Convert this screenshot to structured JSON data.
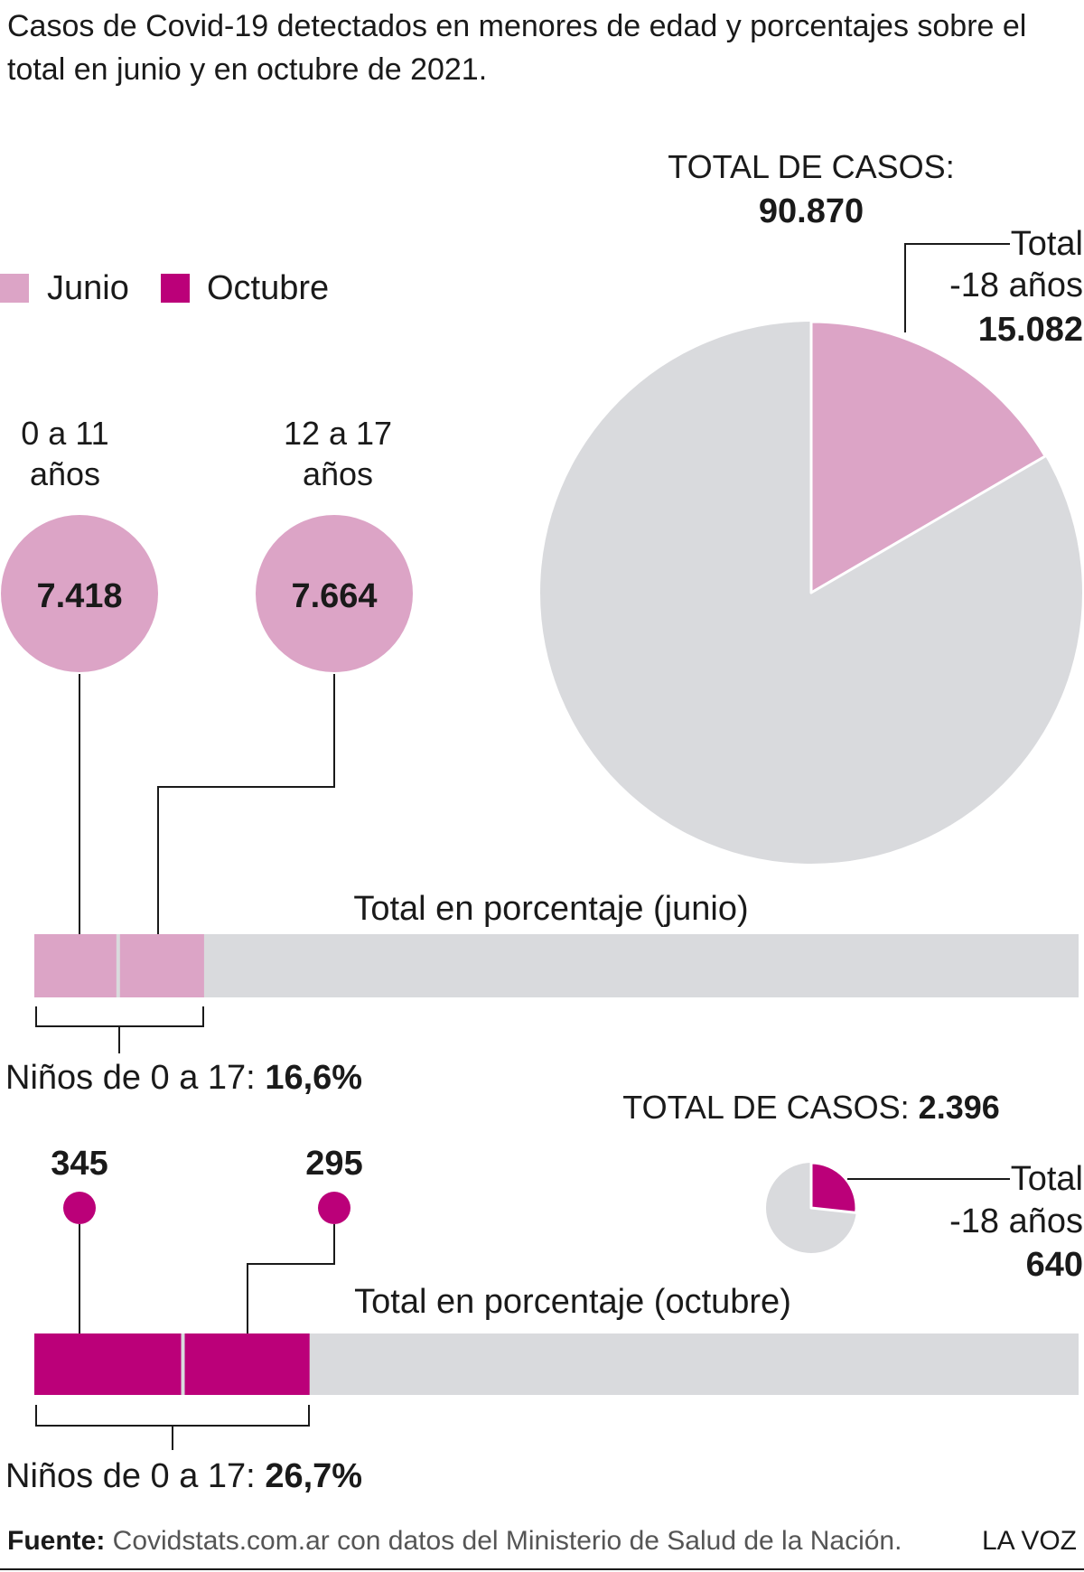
{
  "title_line1": "Casos de Covid-19 detectados en menores de edad y porcentajes sobre el",
  "title_line2": "total en junio y en octubre de 2021.",
  "legend": [
    {
      "label": "Junio",
      "color": "#dca4c6"
    },
    {
      "label": "Octubre",
      "color": "#bb0079"
    }
  ],
  "colors": {
    "junio": "#dca4c6",
    "octubre": "#bb0079",
    "rest": "#d9dadd",
    "line": "#1a1a1a"
  },
  "chart_data": [
    {
      "type": "pie",
      "period": "junio",
      "total_label": "TOTAL DE CASOS:",
      "total": 90870,
      "total_text": "90.870",
      "slices": [
        {
          "label_line1": "Total",
          "label_line2": "-18 años",
          "value": 15082,
          "value_text": "15.082"
        },
        {
          "value": 75788
        }
      ]
    },
    {
      "type": "bar",
      "period": "junio",
      "title": "Total en porcentaje (junio)",
      "groups": [
        {
          "label_line1": "0 a 11",
          "label_line2": "años",
          "value": 7418,
          "value_text": "7.418",
          "percent": 8.2
        },
        {
          "label_line1": "12 a 17",
          "label_line2": "años",
          "value": 7664,
          "value_text": "7.664",
          "percent": 8.4
        }
      ],
      "bracket_label": "Niños de 0 a 17:",
      "bracket_value": "16,6%",
      "percent_total": 16.6
    },
    {
      "type": "pie",
      "period": "octubre",
      "total_label": "TOTAL DE CASOS:",
      "total": 2396,
      "total_text": "2.396",
      "slices": [
        {
          "label_line1": "Total",
          "label_line2": "-18 años",
          "value": 640,
          "value_text": "640"
        },
        {
          "value": 1756
        }
      ]
    },
    {
      "type": "bar",
      "period": "octubre",
      "title": "Total en porcentaje (octubre)",
      "groups": [
        {
          "value": 345,
          "value_text": "345",
          "percent": 14.4
        },
        {
          "value": 295,
          "value_text": "295",
          "percent": 12.3
        }
      ],
      "bracket_label": "Niños de 0 a 17:",
      "bracket_value": "26,7%",
      "percent_total": 26.7
    }
  ],
  "footer": {
    "source_label": "Fuente:",
    "source_text": "Covidstats.com.ar con datos del Ministerio de Salud de la Nación.",
    "brand": "LA VOZ"
  }
}
